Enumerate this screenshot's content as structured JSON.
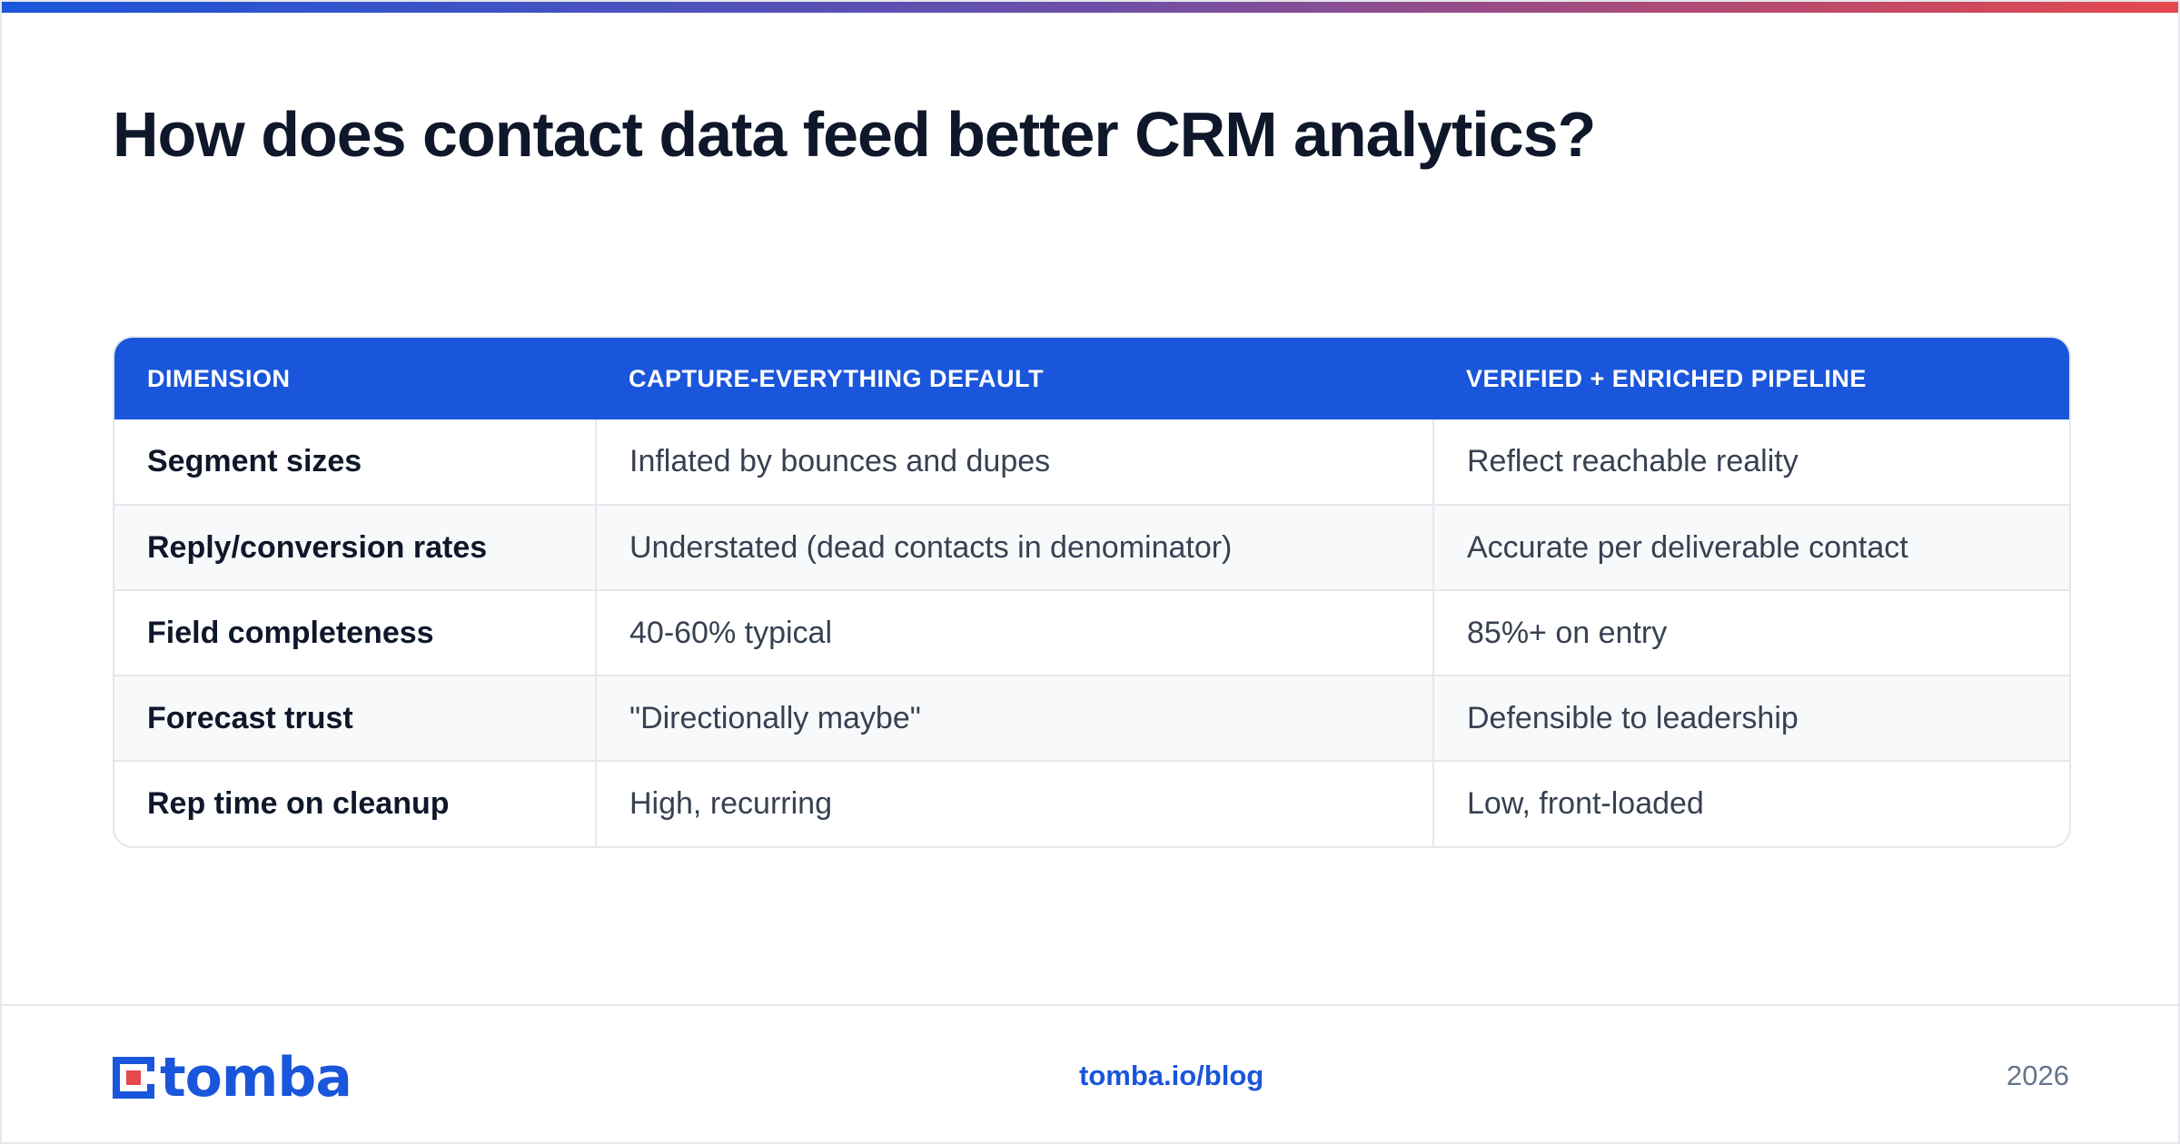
{
  "title": "How does contact data feed better CRM analytics?",
  "colors": {
    "accent": "#1a56db",
    "brand_red": "#e5484d",
    "header_text": "#ffffff"
  },
  "table": {
    "headers": [
      "DIMENSION",
      "CAPTURE-EVERYTHING DEFAULT",
      "VERIFIED + ENRICHED PIPELINE"
    ],
    "rows": [
      [
        "Segment sizes",
        "Inflated by bounces and dupes",
        "Reflect reachable reality"
      ],
      [
        "Reply/conversion rates",
        "Understated (dead contacts in denominator)",
        "Accurate per deliverable contact"
      ],
      [
        "Field completeness",
        "40-60% typical",
        "85%+ on entry"
      ],
      [
        "Forecast trust",
        "\"Directionally maybe\"",
        "Defensible to leadership"
      ],
      [
        "Rep time on cleanup",
        "High, recurring",
        "Low, front-loaded"
      ]
    ]
  },
  "footer": {
    "logo_text": "tomba",
    "logo_icon": "tomba-logo-icon",
    "link": "tomba.io/blog",
    "year": "2026"
  }
}
